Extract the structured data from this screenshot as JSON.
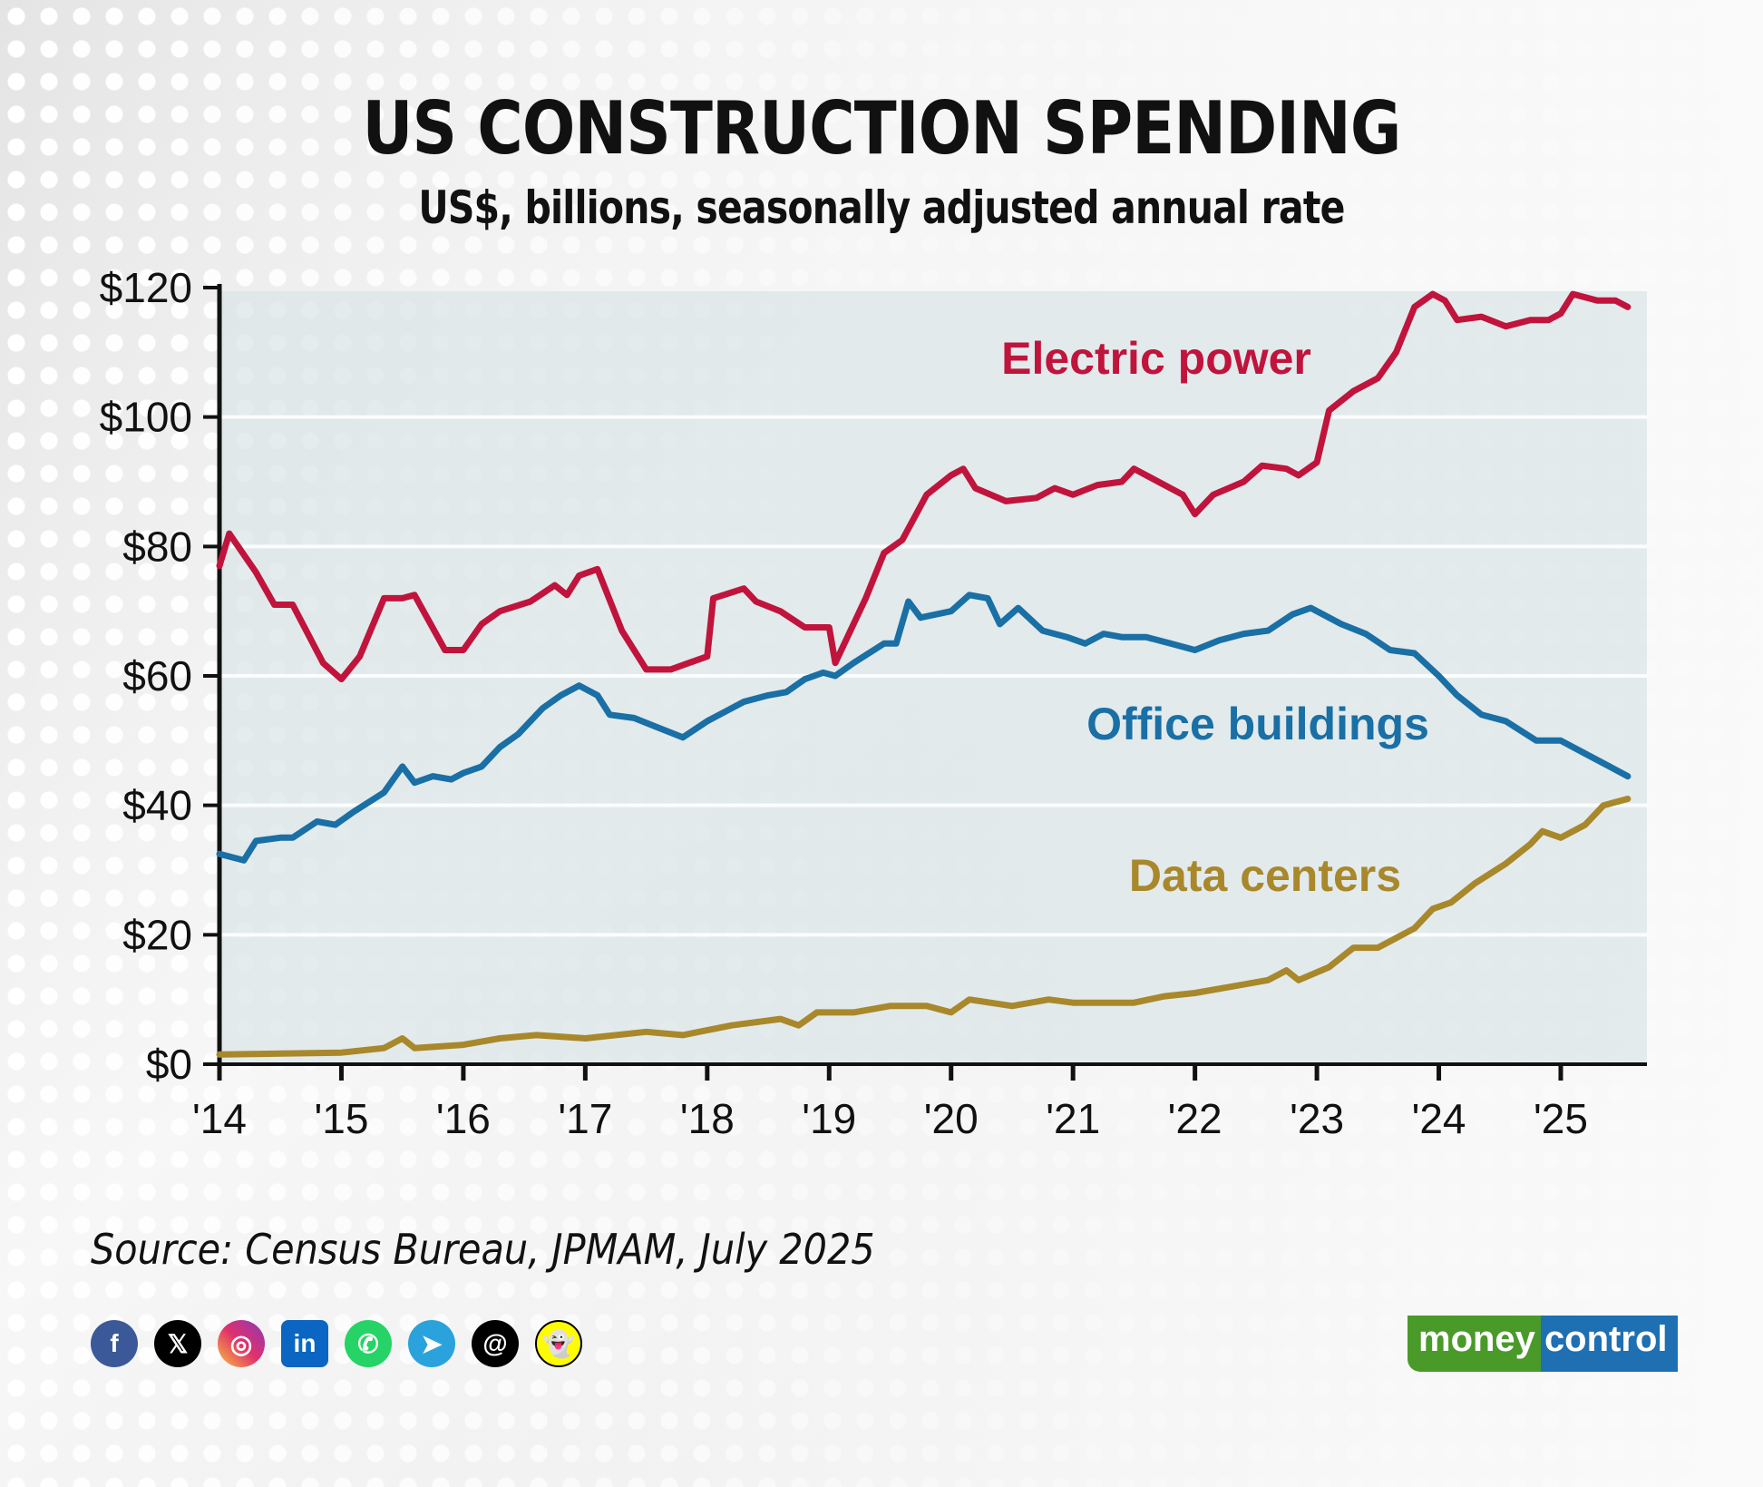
{
  "title": "US CONSTRUCTION SPENDING",
  "subtitle": "US$, billions, seasonally adjusted annual rate",
  "source": "Source: Census Bureau, JPMAM, July 2025",
  "social_icons": [
    "facebook-icon",
    "x-icon",
    "instagram-icon",
    "linkedin-icon",
    "whatsapp-icon",
    "telegram-icon",
    "threads-icon",
    "snapchat-icon"
  ],
  "logo": {
    "part1": "money",
    "part2": "control"
  },
  "chart_data": {
    "type": "line",
    "title": "US CONSTRUCTION SPENDING",
    "ylabel": "",
    "xlabel": "",
    "ylim": [
      0,
      120
    ],
    "xlim": [
      2014,
      2025.7
    ],
    "y_ticks": [
      "$0",
      "$20",
      "$40",
      "$60",
      "$80",
      "$100",
      "$120"
    ],
    "y_tick_values": [
      0,
      20,
      40,
      60,
      80,
      100,
      120
    ],
    "x_ticks": [
      "'14",
      "'15",
      "'16",
      "'17",
      "'18",
      "'19",
      "'20",
      "'21",
      "'22",
      "'23",
      "'24",
      "'25"
    ],
    "x_tick_values": [
      2014,
      2015,
      2016,
      2017,
      2018,
      2019,
      2020,
      2021,
      2022,
      2023,
      2024,
      2025
    ],
    "grid": "horizontal",
    "series": [
      {
        "name": "Electric power",
        "color": "#c0143c",
        "x": [
          2014.0,
          2014.08,
          2014.3,
          2014.45,
          2014.6,
          2014.85,
          2015.0,
          2015.15,
          2015.35,
          2015.5,
          2015.6,
          2015.85,
          2016.0,
          2016.15,
          2016.3,
          2016.55,
          2016.75,
          2016.85,
          2016.95,
          2017.1,
          2017.3,
          2017.5,
          2017.7,
          2017.85,
          2018.0,
          2018.05,
          2018.3,
          2018.4,
          2018.6,
          2018.8,
          2019.0,
          2019.05,
          2019.3,
          2019.45,
          2019.6,
          2019.8,
          2020.0,
          2020.1,
          2020.2,
          2020.45,
          2020.7,
          2020.85,
          2021.0,
          2021.2,
          2021.4,
          2021.5,
          2021.7,
          2021.9,
          2022.0,
          2022.15,
          2022.4,
          2022.55,
          2022.75,
          2022.85,
          2023.0,
          2023.1,
          2023.3,
          2023.5,
          2023.65,
          2023.8,
          2023.95,
          2024.05,
          2024.15,
          2024.35,
          2024.55,
          2024.75,
          2024.9,
          2025.0,
          2025.1,
          2025.3,
          2025.45,
          2025.55
        ],
        "values": [
          77,
          82,
          76,
          71,
          71,
          62,
          59.5,
          63,
          72,
          72,
          72.5,
          64,
          64,
          68,
          70,
          71.5,
          74,
          72.5,
          75.5,
          76.5,
          67,
          61,
          61,
          62,
          63,
          72,
          73.5,
          71.5,
          70,
          67.5,
          67.5,
          62,
          72,
          79,
          81,
          88,
          91,
          92,
          89,
          87,
          87.5,
          89,
          88,
          89.5,
          90,
          92,
          90,
          88,
          85,
          88,
          90,
          92.5,
          92,
          91,
          93,
          101,
          104,
          106,
          110,
          117,
          119,
          118,
          115,
          115.5,
          114,
          115,
          115,
          116,
          119,
          118,
          118,
          117
        ]
      },
      {
        "name": "Office buildings",
        "color": "#1a6fa5",
        "x": [
          2014.0,
          2014.1,
          2014.2,
          2014.3,
          2014.5,
          2014.6,
          2014.8,
          2014.95,
          2015.1,
          2015.35,
          2015.5,
          2015.6,
          2015.75,
          2015.9,
          2016.0,
          2016.15,
          2016.3,
          2016.45,
          2016.65,
          2016.8,
          2016.95,
          2017.1,
          2017.2,
          2017.4,
          2017.6,
          2017.8,
          2018.0,
          2018.15,
          2018.3,
          2018.5,
          2018.65,
          2018.8,
          2018.95,
          2019.05,
          2019.2,
          2019.45,
          2019.55,
          2019.65,
          2019.75,
          2020.0,
          2020.15,
          2020.3,
          2020.4,
          2020.55,
          2020.75,
          2020.95,
          2021.1,
          2021.25,
          2021.4,
          2021.6,
          2021.8,
          2022.0,
          2022.2,
          2022.4,
          2022.6,
          2022.8,
          2022.95,
          2023.2,
          2023.4,
          2023.6,
          2023.8,
          2024.0,
          2024.15,
          2024.35,
          2024.55,
          2024.8,
          2025.0,
          2025.2,
          2025.4,
          2025.55
        ],
        "values": [
          32.5,
          32,
          31.5,
          34.5,
          35,
          35,
          37.5,
          37,
          39,
          42,
          46,
          43.5,
          44.5,
          44,
          45,
          46,
          49,
          51,
          55,
          57,
          58.5,
          57,
          54,
          53.5,
          52,
          50.5,
          53,
          54.5,
          56,
          57,
          57.5,
          59.5,
          60.5,
          60,
          62,
          65,
          65,
          71.5,
          69,
          70,
          72.5,
          72,
          68,
          70.5,
          67,
          66,
          65,
          66.5,
          66,
          66,
          65,
          64,
          65.5,
          66.5,
          67,
          69.5,
          70.5,
          68,
          66.5,
          64,
          63.5,
          60,
          57,
          54,
          53,
          50,
          50,
          48,
          46,
          44.5
        ]
      },
      {
        "name": "Data centers",
        "color": "#a8882a",
        "x": [
          2014.0,
          2015.0,
          2015.35,
          2015.5,
          2015.6,
          2016.0,
          2016.3,
          2016.6,
          2017.0,
          2017.5,
          2017.8,
          2018.2,
          2018.6,
          2018.75,
          2018.9,
          2019.2,
          2019.5,
          2019.8,
          2020.0,
          2020.15,
          2020.5,
          2020.8,
          2021.0,
          2021.5,
          2021.75,
          2022.0,
          2022.3,
          2022.6,
          2022.75,
          2022.85,
          2023.1,
          2023.3,
          2023.5,
          2023.8,
          2023.95,
          2024.1,
          2024.3,
          2024.55,
          2024.75,
          2024.85,
          2025.0,
          2025.2,
          2025.35,
          2025.55
        ],
        "values": [
          1.5,
          1.8,
          2.5,
          4,
          2.5,
          3,
          4,
          4.5,
          4,
          5,
          4.5,
          6,
          7,
          6,
          8,
          8,
          9,
          9,
          8,
          10,
          9,
          10,
          9.5,
          9.5,
          10.5,
          11,
          12,
          13,
          14.5,
          13,
          15,
          18,
          18,
          21,
          24,
          25,
          28,
          31,
          34,
          36,
          35,
          37,
          40,
          41
        ]
      }
    ]
  }
}
